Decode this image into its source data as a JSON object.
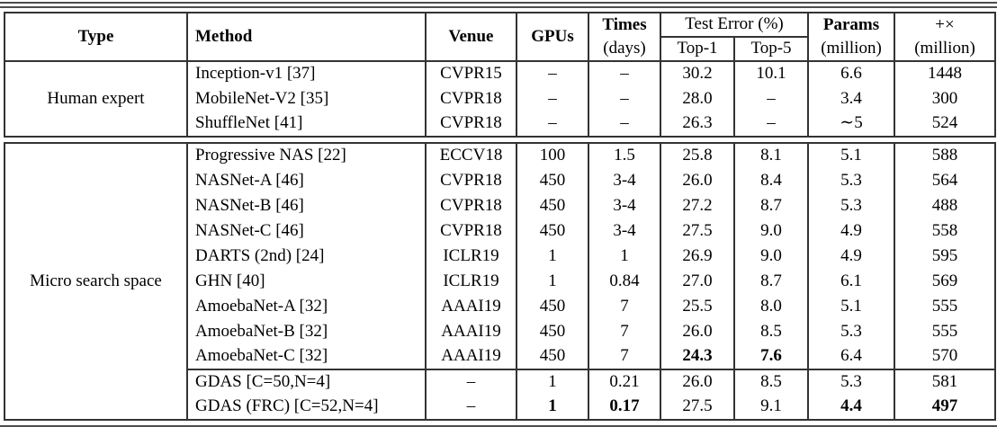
{
  "header": {
    "type": "Type",
    "method": "Method",
    "venue": "Venue",
    "gpus": "GPUs",
    "times": "Times",
    "times_sub": "(days)",
    "test_error": "Test Error (%)",
    "top1": "Top-1",
    "top5": "Top-5",
    "params": "Params",
    "params_sub": "(million)",
    "flops": "+×",
    "flops_sub": "(million)"
  },
  "sections": [
    {
      "type_label": "Human expert",
      "groups": [
        {
          "rows": [
            {
              "cells": [
                "Inception-v1 [37]",
                "CVPR15",
                "–",
                "–",
                "30.2",
                "10.1",
                "6.6",
                "1448"
              ],
              "bold": []
            },
            {
              "cells": [
                "MobileNet-V2 [35]",
                "CVPR18",
                "–",
                "–",
                "28.0",
                "–",
                "3.4",
                "300"
              ],
              "bold": []
            },
            {
              "cells": [
                "ShuffleNet [41]",
                "CVPR18",
                "–",
                "–",
                "26.3",
                "–",
                "∼5",
                "524"
              ],
              "bold": []
            }
          ]
        }
      ]
    },
    {
      "type_label": "Micro search space",
      "groups": [
        {
          "rows": [
            {
              "cells": [
                "Progressive NAS [22]",
                "ECCV18",
                "100",
                "1.5",
                "25.8",
                "8.1",
                "5.1",
                "588"
              ],
              "bold": []
            },
            {
              "cells": [
                "NASNet-A [46]",
                "CVPR18",
                "450",
                "3-4",
                "26.0",
                "8.4",
                "5.3",
                "564"
              ],
              "bold": []
            },
            {
              "cells": [
                "NASNet-B [46]",
                "CVPR18",
                "450",
                "3-4",
                "27.2",
                "8.7",
                "5.3",
                "488"
              ],
              "bold": []
            },
            {
              "cells": [
                "NASNet-C [46]",
                "CVPR18",
                "450",
                "3-4",
                "27.5",
                "9.0",
                "4.9",
                "558"
              ],
              "bold": []
            },
            {
              "cells": [
                "DARTS (2nd) [24]",
                "ICLR19",
                "1",
                "1",
                "26.9",
                "9.0",
                "4.9",
                "595"
              ],
              "bold": []
            },
            {
              "cells": [
                "GHN [40]",
                "ICLR19",
                "1",
                "0.84",
                "27.0",
                "8.7",
                "6.1",
                "569"
              ],
              "bold": []
            },
            {
              "cells": [
                "AmoebaNet-A [32]",
                "AAAI19",
                "450",
                "7",
                "25.5",
                "8.0",
                "5.1",
                "555"
              ],
              "bold": []
            },
            {
              "cells": [
                "AmoebaNet-B [32]",
                "AAAI19",
                "450",
                "7",
                "26.0",
                "8.5",
                "5.3",
                "555"
              ],
              "bold": []
            },
            {
              "cells": [
                "AmoebaNet-C [32]",
                "AAAI19",
                "450",
                "7",
                "24.3",
                "7.6",
                "6.4",
                "570"
              ],
              "bold": [
                4,
                5
              ]
            }
          ]
        },
        {
          "rows": [
            {
              "cells": [
                "GDAS [C=50,N=4]",
                "–",
                "1",
                "0.21",
                "26.0",
                "8.5",
                "5.3",
                "581"
              ],
              "bold": []
            },
            {
              "cells": [
                "GDAS (FRC) [C=52,N=4]",
                "–",
                "1",
                "0.17",
                "27.5",
                "9.1",
                "4.4",
                "497"
              ],
              "bold": [
                2,
                3,
                6,
                7
              ]
            }
          ]
        }
      ]
    }
  ]
}
